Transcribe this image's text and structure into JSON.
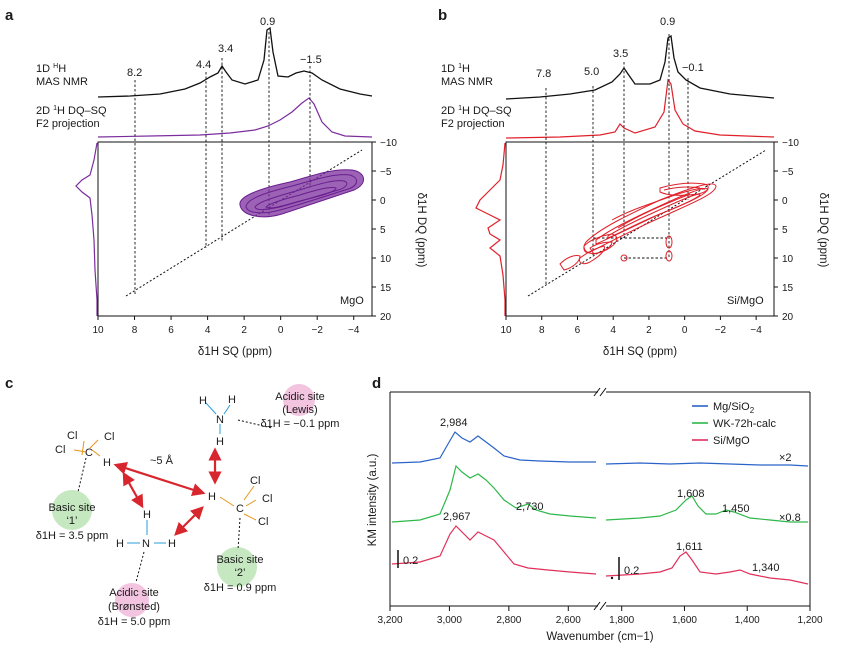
{
  "chart_data": [
    {
      "panel": "a",
      "type": "2D NMR contour (1H DQ-SQ) with 1D projections",
      "label_1d": [
        "1D ",
        "H",
        "MAS NMR"
      ],
      "label_proj": [
        "2D ",
        "H DQ–SQ",
        "F2 projection"
      ],
      "sample": "MgO",
      "peaks_1d": [
        "8.2",
        "4.4",
        "3.4",
        "0.9",
        "−1.5"
      ],
      "x_axis": {
        "label": "δ1H SQ (ppm)",
        "range": [
          10,
          -5
        ],
        "ticks": [
          "10",
          "8",
          "6",
          "4",
          "2",
          "0",
          "−2",
          "−4"
        ]
      },
      "y_axis": {
        "label": "δ1H DQ (ppm)",
        "range": [
          -10,
          20
        ],
        "ticks": [
          "−10",
          "−5",
          "0",
          "5",
          "10",
          "15",
          "20"
        ]
      },
      "color": "#7b2d9e"
    },
    {
      "panel": "b",
      "type": "2D NMR contour (1H DQ-SQ) with 1D projections",
      "label_1d": [
        "1D ",
        "H",
        "MAS NMR"
      ],
      "label_proj": [
        "2D ",
        "H DQ–SQ",
        "F2 projection"
      ],
      "sample": "Si/MgO",
      "peaks_1d": [
        "7.8",
        "5.0",
        "3.5",
        "0.9",
        "−0.1"
      ],
      "x_axis": {
        "label": "δ1H SQ (ppm)",
        "range": [
          10,
          -5
        ],
        "ticks": [
          "10",
          "8",
          "6",
          "4",
          "2",
          "0",
          "−2",
          "−4"
        ]
      },
      "y_axis": {
        "label": "δ1H DQ (ppm)",
        "range": [
          -10,
          20
        ],
        "ticks": [
          "−10",
          "−5",
          "0",
          "5",
          "10",
          "15",
          "20"
        ]
      },
      "color": "#e0202a"
    },
    {
      "panel": "d",
      "type": "line",
      "title": "",
      "xlabel": "Wavenumber (cm−1)",
      "ylabel": "KM intensity (a.u.)",
      "x_ticks": [
        "3,200",
        "3,000",
        "2,800",
        "2,600",
        "1,800",
        "1,600",
        "1,400",
        "1,200"
      ],
      "x_ranges": [
        [
          3200,
          2500
        ],
        [
          1850,
          1200
        ]
      ],
      "series": [
        {
          "name": "Mg/SiO2",
          "color": "#2a64c8",
          "scale": "×2",
          "peaks": [
            "2,984"
          ]
        },
        {
          "name": "WK-72h-calc",
          "color": "#2eb84a",
          "scale": "×0.8",
          "peaks": [
            "2,730",
            "1,608",
            "1,450"
          ]
        },
        {
          "name": "Si/MgO",
          "color": "#e0305a",
          "scale": "",
          "peaks": [
            "2,967",
            "1,611",
            "1,340"
          ]
        }
      ],
      "scale_bars": [
        "0.2",
        "0.2"
      ],
      "legend_position": "top-right"
    }
  ],
  "panel_c": {
    "label": "c",
    "distance": "~5 Å",
    "sites": [
      {
        "name": "Acidic site",
        "sub": "(Lewis)",
        "shift": "δ1H = −0.1 ppm"
      },
      {
        "name": "Basic site",
        "sub": "‘1’",
        "shift": "δ1H = 3.5 ppm"
      },
      {
        "name": "Basic site",
        "sub": "‘2’",
        "shift": "δ1H = 0.9 ppm"
      },
      {
        "name": "Acidic site",
        "sub": "(Brønsted)",
        "shift": "δ1H = 5.0 ppm"
      }
    ],
    "atoms": {
      "cl": "Cl",
      "c": "C",
      "h": "H",
      "n": "N"
    }
  }
}
